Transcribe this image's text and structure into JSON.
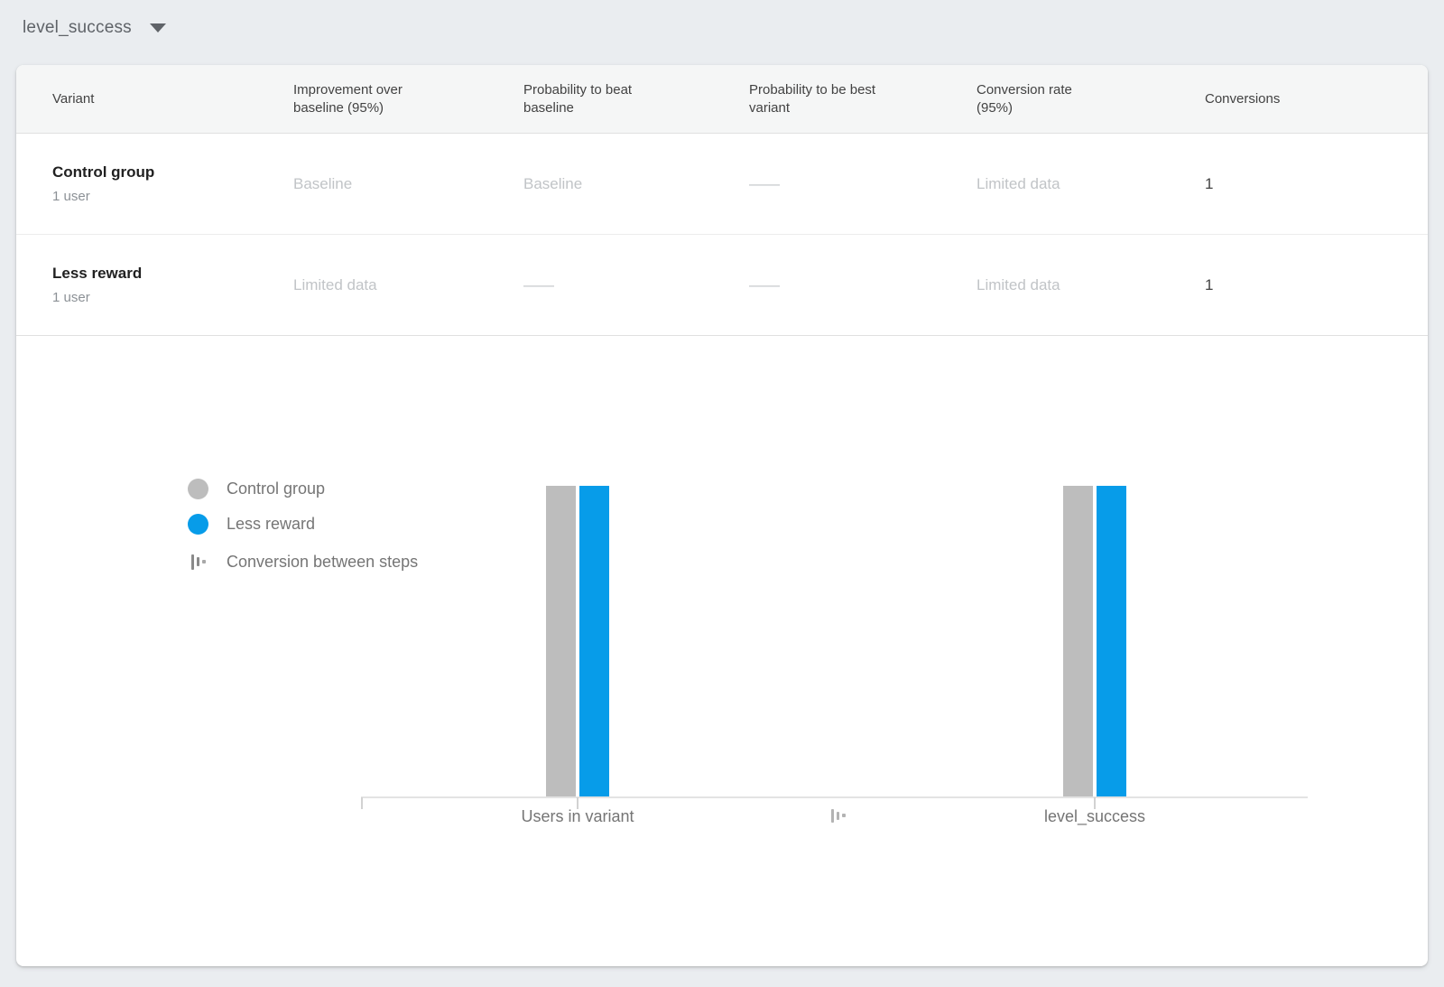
{
  "page": {
    "background": "#eaedf0",
    "card_background": "#ffffff"
  },
  "metric_selector": {
    "value": "level_success"
  },
  "results_table": {
    "columns": [
      "Variant",
      "Improvement over baseline (95%)",
      "Probability to beat baseline",
      "Probability to be best variant",
      "Conversion rate (95%)",
      "Conversions"
    ],
    "rows": [
      {
        "variant": "Control group",
        "users": "1 user",
        "improvement_over_baseline": "Baseline",
        "probability_to_beat_baseline": "Baseline",
        "probability_to_be_best": "——",
        "conversion_rate": "Limited data",
        "conversions": "1"
      },
      {
        "variant": "Less reward",
        "users": "1 user",
        "improvement_over_baseline": "Limited data",
        "probability_to_beat_baseline": "——",
        "probability_to_be_best": "——",
        "conversion_rate": "Limited data",
        "conversions": "1"
      }
    ]
  },
  "legend": {
    "items": [
      {
        "label": "Control group",
        "swatch": "circle",
        "color": "#bdbdbd"
      },
      {
        "label": "Less reward",
        "swatch": "circle",
        "color": "#079ce9"
      },
      {
        "label": "Conversion between steps",
        "swatch": "steps-icon",
        "color": "#8a8a8a"
      }
    ]
  },
  "chart_data": {
    "type": "bar",
    "categories": [
      "Users in variant",
      "level_success"
    ],
    "series": [
      {
        "name": "Control group",
        "color": "#bdbdbd",
        "values": [
          1,
          1
        ]
      },
      {
        "name": "Less reward",
        "color": "#079ce9",
        "values": [
          1,
          1
        ]
      }
    ],
    "ylim": [
      0,
      1
    ],
    "grid": false,
    "y_axis_shown": false,
    "legend_position": "left",
    "between_steps_marker": "Conversion between steps"
  }
}
